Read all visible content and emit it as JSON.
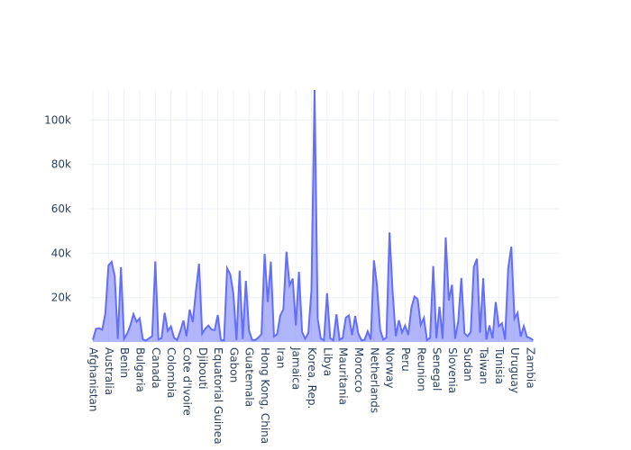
{
  "chart_data": {
    "type": "area",
    "categories": [
      "Afghanistan",
      null,
      null,
      null,
      null,
      "Australia",
      null,
      null,
      null,
      null,
      "Benin",
      null,
      null,
      null,
      null,
      "Bulgaria",
      null,
      null,
      null,
      null,
      "Canada",
      null,
      null,
      null,
      null,
      "Colombia",
      null,
      null,
      null,
      null,
      "Cote d'Ivoire",
      null,
      null,
      null,
      null,
      "Djibouti",
      null,
      null,
      null,
      null,
      "Equatorial Guinea",
      null,
      null,
      null,
      null,
      "Gabon",
      null,
      null,
      null,
      null,
      "Guatemala",
      null,
      null,
      null,
      null,
      "Hong Kong, China",
      null,
      null,
      null,
      null,
      "Iran",
      null,
      null,
      null,
      null,
      "Jamaica",
      null,
      null,
      null,
      null,
      "Korea, Rep.",
      null,
      null,
      null,
      null,
      "Libya",
      null,
      null,
      null,
      null,
      "Mauritania",
      null,
      null,
      null,
      null,
      "Morocco",
      null,
      null,
      null,
      null,
      "Netherlands",
      null,
      null,
      null,
      null,
      "Norway",
      null,
      null,
      null,
      null,
      "Peru",
      null,
      null,
      null,
      null,
      "Reunion",
      null,
      null,
      null,
      null,
      "Senegal",
      null,
      null,
      null,
      null,
      "Slovenia",
      null,
      null,
      null,
      null,
      "Sudan",
      null,
      null,
      null,
      null,
      "Taiwan",
      null,
      null,
      null,
      null,
      "Tunisia",
      null,
      null,
      null,
      null,
      "Uruguay",
      null,
      null,
      null,
      null,
      "Zambia",
      null
    ],
    "values": [
      978,
      5937,
      6223,
      5523,
      12779,
      34435,
      36126,
      29796,
      1391,
      33693,
      1441,
      3822,
      7446,
      12570,
      9066,
      10681,
      1217,
      631,
      1714,
      2603,
      36319,
      1193,
      1704,
      13172,
      4959,
      7007,
      1937,
      906,
      4879,
      9645,
      2603,
      14619,
      8948,
      22833,
      35278,
      3694,
      6025,
      7429,
      5581,
      5355,
      12154,
      913,
      691,
      33207,
      30470,
      21746,
      884,
      32170,
      1328,
      27538,
      5186,
      946,
      838,
      2011,
      3548,
      39725,
      18009,
      36181,
      2452,
      3541,
      11889,
      14688,
      40676,
      25523,
      28570,
      7434,
      31656,
      4519,
      1463,
      4106,
      23348,
      113523,
      10461,
      1569,
      803,
      21951,
      1749,
      759,
      12452,
      1043,
      1803,
      10957,
      11978,
      3096,
      11732,
      3821,
      824,
      944,
      4811,
      1091,
      36798,
      25185,
      5486,
      1055,
      2014,
      49357,
      22316,
      2606,
      9809,
      4259,
      7409,
      3190,
      15390,
      20510,
      19329,
      7670,
      10808,
      882,
      1891,
      34168,
      1712,
      15871,
      1465,
      47143,
      18678,
      25768,
      1451,
      9270,
      28821,
      3970,
      2602,
      4513,
      33860,
      37506,
      4185,
      28718,
      1107,
      7458,
      1650,
      18009,
      7093,
      8458,
      1056,
      33203,
      42952,
      10611,
      13143,
      2442,
      7110,
      2281,
      1777,
      799
    ],
    "color": "#636efa",
    "ylim": [
      0,
      113523
    ],
    "yticks": [
      {
        "value": 20000,
        "label": "20k"
      },
      {
        "value": 40000,
        "label": "40k"
      },
      {
        "value": 60000,
        "label": "60k"
      },
      {
        "value": 80000,
        "label": "80k"
      },
      {
        "value": 100000,
        "label": "100k"
      }
    ],
    "grid": true
  }
}
